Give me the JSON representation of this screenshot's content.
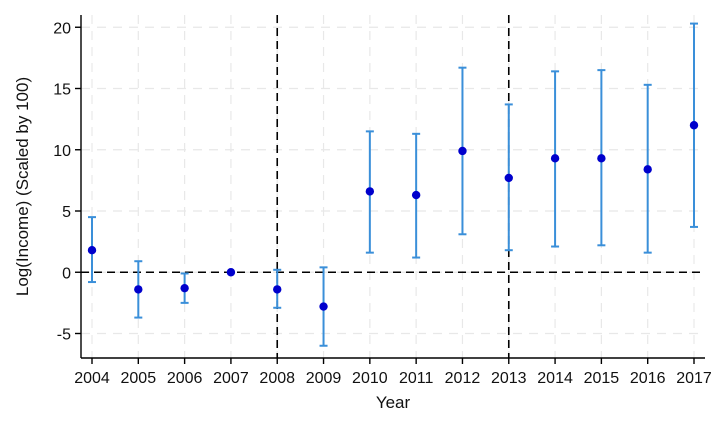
{
  "chart_data": {
    "type": "scatter",
    "title": "",
    "xlabel": "Year",
    "ylabel": "Log(Income) (Scaled by 100)",
    "xlim": [
      2004,
      2017
    ],
    "ylim": [
      -7,
      21
    ],
    "yticks": [
      -5,
      0,
      5,
      10,
      15,
      20
    ],
    "grid": true,
    "reference_lines": {
      "horizontal": [
        0
      ],
      "vertical": [
        2008,
        2013
      ]
    },
    "series": [
      {
        "x": [
          2004,
          2005,
          2006,
          2007,
          2008,
          2009,
          2010,
          2011,
          2012,
          2013,
          2014,
          2015,
          2016,
          2017
        ],
        "y": [
          1.8,
          -1.4,
          -1.3,
          0.0,
          -1.4,
          -2.8,
          6.6,
          6.3,
          9.9,
          7.7,
          9.3,
          9.3,
          8.4,
          12.0
        ],
        "ci_low": [
          -0.8,
          -3.7,
          -2.5,
          0.0,
          -2.9,
          -6.0,
          1.6,
          1.2,
          3.1,
          1.8,
          2.1,
          2.2,
          1.6,
          3.7
        ],
        "ci_high": [
          4.5,
          0.9,
          -0.1,
          0.0,
          0.2,
          0.4,
          11.5,
          11.3,
          16.7,
          13.7,
          16.4,
          16.5,
          15.3,
          20.3
        ]
      }
    ],
    "colors": {
      "point": "#0000cc",
      "ci": "#3a8fd9",
      "grid": "#e8e8e8",
      "reference": "#000000",
      "axis": "#000000"
    }
  }
}
